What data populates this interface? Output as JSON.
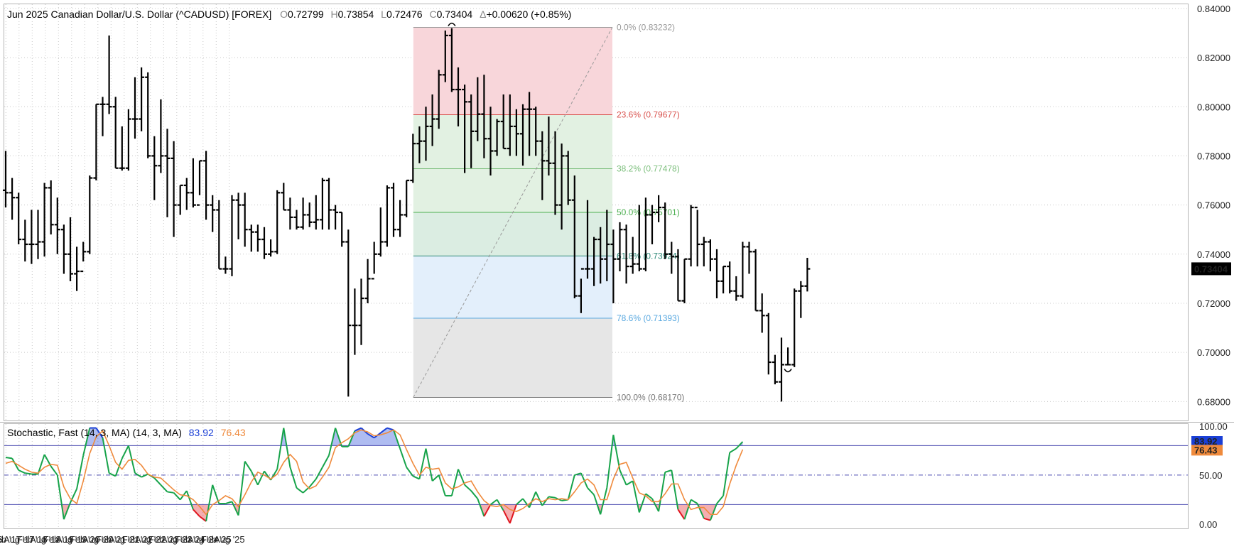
{
  "header": {
    "title": "Jun 2025  Canadian Dollar/U.S. Dollar (^CADUSD) [FOREX]",
    "ohlc": [
      {
        "label": "O",
        "value": "0.72799"
      },
      {
        "label": "H",
        "value": "0.73854"
      },
      {
        "label": "L",
        "value": "0.72476"
      },
      {
        "label": "C",
        "value": "0.73404"
      }
    ],
    "change_label": "Δ",
    "change": "+0.00620 (+0.85%)"
  },
  "indicator": {
    "title": "Stochastic, Fast (14, 3, MA)  (14, 3, MA)",
    "k_value": "83.92",
    "d_value": "76.43",
    "k_color": "#1a3fd6",
    "d_color": "#ef8a3c"
  },
  "colors": {
    "k_line": "#17a34a",
    "d_line": "#ef8a3c",
    "overbought_fill": "#1a3fd6",
    "oversold_fill": "#e0161f",
    "level_line": "#4a4ab0",
    "last_price_bg": "#000000"
  },
  "chart_data": [
    {
      "type": "ohlc",
      "name": "^CADUSD",
      "period": "quarterly",
      "x_ticks": [
        "g '16",
        "Feb '17",
        "Aug '17",
        "Feb '18",
        "Aug '18",
        "Feb '19",
        "Aug '19",
        "Feb '20",
        "Aug '20",
        "Feb '21",
        "Aug '21",
        "Feb '22",
        "Aug '22",
        "Feb '23",
        "Aug '23",
        "Feb '24",
        "Aug '24",
        "Feb '25",
        "Aug '25"
      ],
      "y_ticks": [
        "0.84000",
        "0.82000",
        "0.80000",
        "0.78000",
        "0.76000",
        "0.74000",
        "0.72000",
        "0.70000",
        "0.68000"
      ],
      "ylim": [
        0.672,
        0.842
      ],
      "last_price": "0.73404",
      "bars": [
        [
          0.766,
          0.782,
          0.759,
          0.765
        ],
        [
          0.765,
          0.771,
          0.754,
          0.763
        ],
        [
          0.763,
          0.765,
          0.744,
          0.746
        ],
        [
          0.746,
          0.754,
          0.737,
          0.744
        ],
        [
          0.744,
          0.758,
          0.736,
          0.744
        ],
        [
          0.744,
          0.758,
          0.738,
          0.745
        ],
        [
          0.745,
          0.769,
          0.739,
          0.767
        ],
        [
          0.767,
          0.77,
          0.748,
          0.752
        ],
        [
          0.752,
          0.763,
          0.74,
          0.75
        ],
        [
          0.75,
          0.752,
          0.732,
          0.74
        ],
        [
          0.74,
          0.755,
          0.729,
          0.732
        ],
        [
          0.732,
          0.743,
          0.725,
          0.733
        ],
        [
          0.733,
          0.745,
          0.737,
          0.741
        ],
        [
          0.741,
          0.772,
          0.74,
          0.771
        ],
        [
          0.771,
          0.801,
          0.77,
          0.801
        ],
        [
          0.801,
          0.804,
          0.788,
          0.801
        ],
        [
          0.801,
          0.829,
          0.797,
          0.8
        ],
        [
          0.8,
          0.804,
          0.775,
          0.775
        ],
        [
          0.775,
          0.792,
          0.774,
          0.775
        ],
        [
          0.775,
          0.799,
          0.774,
          0.795
        ],
        [
          0.795,
          0.812,
          0.787,
          0.795
        ],
        [
          0.795,
          0.816,
          0.79,
          0.812
        ],
        [
          0.812,
          0.814,
          0.779,
          0.78
        ],
        [
          0.78,
          0.788,
          0.762,
          0.776
        ],
        [
          0.776,
          0.803,
          0.773,
          0.78
        ],
        [
          0.78,
          0.791,
          0.755,
          0.779
        ],
        [
          0.779,
          0.786,
          0.747,
          0.76
        ],
        [
          0.76,
          0.768,
          0.756,
          0.768
        ],
        [
          0.768,
          0.771,
          0.758,
          0.765
        ],
        [
          0.765,
          0.779,
          0.759,
          0.76
        ],
        [
          0.76,
          0.778,
          0.764,
          0.778
        ],
        [
          0.778,
          0.782,
          0.754,
          0.76
        ],
        [
          0.76,
          0.764,
          0.749,
          0.758
        ],
        [
          0.758,
          0.762,
          0.734,
          0.734
        ],
        [
          0.734,
          0.739,
          0.732,
          0.734
        ],
        [
          0.734,
          0.764,
          0.731,
          0.762
        ],
        [
          0.762,
          0.765,
          0.746,
          0.76
        ],
        [
          0.76,
          0.765,
          0.743,
          0.75
        ],
        [
          0.75,
          0.752,
          0.741,
          0.749
        ],
        [
          0.749,
          0.752,
          0.741,
          0.746
        ],
        [
          0.746,
          0.751,
          0.738,
          0.74
        ],
        [
          0.74,
          0.746,
          0.739,
          0.741
        ],
        [
          0.741,
          0.766,
          0.74,
          0.765
        ],
        [
          0.765,
          0.769,
          0.758,
          0.758
        ],
        [
          0.758,
          0.763,
          0.75,
          0.755
        ],
        [
          0.755,
          0.758,
          0.75,
          0.751
        ],
        [
          0.751,
          0.763,
          0.75,
          0.756
        ],
        [
          0.756,
          0.761,
          0.751,
          0.753
        ],
        [
          0.753,
          0.764,
          0.75,
          0.754
        ],
        [
          0.754,
          0.771,
          0.75,
          0.77
        ],
        [
          0.77,
          0.771,
          0.75,
          0.758
        ],
        [
          0.758,
          0.76,
          0.75,
          0.757
        ],
        [
          0.757,
          0.757,
          0.743,
          0.745
        ],
        [
          0.745,
          0.75,
          0.682,
          0.711
        ],
        [
          0.711,
          0.726,
          0.699,
          0.711
        ],
        [
          0.711,
          0.73,
          0.703,
          0.722
        ],
        [
          0.722,
          0.738,
          0.72,
          0.73
        ],
        [
          0.73,
          0.745,
          0.732,
          0.74
        ],
        [
          0.74,
          0.759,
          0.739,
          0.745
        ],
        [
          0.745,
          0.768,
          0.743,
          0.767
        ],
        [
          0.767,
          0.769,
          0.747,
          0.75
        ],
        [
          0.75,
          0.762,
          0.747,
          0.756
        ],
        [
          0.756,
          0.77,
          0.755,
          0.77
        ],
        [
          0.77,
          0.789,
          0.769,
          0.785
        ],
        [
          0.785,
          0.792,
          0.777,
          0.786
        ],
        [
          0.786,
          0.8,
          0.778,
          0.792
        ],
        [
          0.792,
          0.805,
          0.784,
          0.795
        ],
        [
          0.795,
          0.815,
          0.791,
          0.813
        ],
        [
          0.813,
          0.831,
          0.81,
          0.829
        ],
        [
          0.829,
          0.832,
          0.806,
          0.807
        ],
        [
          0.807,
          0.816,
          0.792,
          0.807
        ],
        [
          0.807,
          0.809,
          0.773,
          0.802
        ],
        [
          0.802,
          0.805,
          0.775,
          0.79
        ],
        [
          0.79,
          0.812,
          0.786,
          0.797
        ],
        [
          0.797,
          0.813,
          0.779,
          0.787
        ],
        [
          0.787,
          0.8,
          0.772,
          0.782
        ],
        [
          0.782,
          0.795,
          0.78,
          0.794
        ],
        [
          0.794,
          0.805,
          0.783,
          0.783
        ],
        [
          0.783,
          0.805,
          0.78,
          0.792
        ],
        [
          0.792,
          0.799,
          0.78,
          0.789
        ],
        [
          0.789,
          0.801,
          0.776,
          0.799
        ],
        [
          0.799,
          0.806,
          0.78,
          0.799
        ],
        [
          0.799,
          0.8,
          0.78,
          0.786
        ],
        [
          0.786,
          0.79,
          0.762,
          0.778
        ],
        [
          0.778,
          0.796,
          0.772,
          0.777
        ],
        [
          0.777,
          0.79,
          0.756,
          0.76
        ],
        [
          0.76,
          0.785,
          0.75,
          0.78
        ],
        [
          0.78,
          0.782,
          0.76,
          0.762
        ],
        [
          0.762,
          0.772,
          0.722,
          0.723
        ],
        [
          0.723,
          0.73,
          0.716,
          0.734
        ],
        [
          0.734,
          0.762,
          0.73,
          0.734
        ],
        [
          0.734,
          0.747,
          0.727,
          0.746
        ],
        [
          0.746,
          0.751,
          0.728,
          0.738
        ],
        [
          0.738,
          0.758,
          0.729,
          0.744
        ],
        [
          0.744,
          0.75,
          0.72,
          0.738
        ],
        [
          0.738,
          0.753,
          0.733,
          0.75
        ],
        [
          0.75,
          0.752,
          0.728,
          0.735
        ],
        [
          0.735,
          0.747,
          0.732,
          0.736
        ],
        [
          0.736,
          0.76,
          0.733,
          0.734
        ],
        [
          0.734,
          0.763,
          0.733,
          0.756
        ],
        [
          0.756,
          0.76,
          0.744,
          0.757
        ],
        [
          0.757,
          0.764,
          0.753,
          0.759
        ],
        [
          0.759,
          0.761,
          0.738,
          0.74
        ],
        [
          0.74,
          0.745,
          0.732,
          0.739
        ],
        [
          0.739,
          0.742,
          0.721,
          0.721
        ],
        [
          0.721,
          0.738,
          0.72,
          0.738
        ],
        [
          0.738,
          0.76,
          0.735,
          0.759
        ],
        [
          0.759,
          0.758,
          0.735,
          0.744
        ],
        [
          0.744,
          0.747,
          0.735,
          0.745
        ],
        [
          0.745,
          0.746,
          0.733,
          0.738
        ],
        [
          0.738,
          0.742,
          0.722,
          0.729
        ],
        [
          0.729,
          0.735,
          0.724,
          0.735
        ],
        [
          0.735,
          0.737,
          0.724,
          0.725
        ],
        [
          0.725,
          0.731,
          0.721,
          0.723
        ],
        [
          0.723,
          0.745,
          0.722,
          0.743
        ],
        [
          0.743,
          0.745,
          0.732,
          0.741
        ],
        [
          0.741,
          0.742,
          0.717,
          0.717
        ],
        [
          0.717,
          0.724,
          0.708,
          0.715
        ],
        [
          0.715,
          0.716,
          0.691,
          0.696
        ],
        [
          0.696,
          0.699,
          0.687,
          0.688
        ],
        [
          0.688,
          0.706,
          0.68,
          0.695
        ],
        [
          0.695,
          0.702,
          0.695,
          0.695
        ],
        [
          0.695,
          0.726,
          0.694,
          0.725
        ],
        [
          0.725,
          0.729,
          0.714,
          0.727
        ],
        [
          0.727,
          0.7385,
          0.7248,
          0.734
        ]
      ],
      "swing_markers": [
        {
          "index": 69,
          "type": "high"
        },
        {
          "index": 121,
          "type": "low"
        }
      ],
      "fibonacci": {
        "high": 0.83232,
        "low": 0.6817,
        "levels": [
          {
            "ratio": "0.0%",
            "price": 0.83232,
            "label": "0.0% (0.83232)",
            "color": "#999999",
            "fill": "#f8d6da"
          },
          {
            "ratio": "23.6%",
            "price": 0.79677,
            "label": "23.6% (0.79677)",
            "color": "#d9534f",
            "fill": "#e2f1e2"
          },
          {
            "ratio": "38.2%",
            "price": 0.77478,
            "label": "38.2% (0.77478)",
            "color": "#7cbf7c",
            "fill": "#e2f1e2"
          },
          {
            "ratio": "50.0%",
            "price": 0.75701,
            "label": "50.0% (0.75701)",
            "color": "#4caf50",
            "fill": "#dbede2"
          },
          {
            "ratio": "61.8%",
            "price": 0.73924,
            "label": "61.8% (0.73924)",
            "color": "#2e8b7a",
            "fill": "#e3effb"
          },
          {
            "ratio": "78.6%",
            "price": 0.71393,
            "label": "78.6% (0.71393)",
            "color": "#5aa9e0",
            "fill": "#e6e6e6"
          },
          {
            "ratio": "100.0%",
            "price": 0.6817,
            "label": "100.0% (0.68170)",
            "color": "#777777",
            "fill": ""
          }
        ]
      }
    },
    {
      "type": "line",
      "name": "Stochastic, Fast (14, 3, MA)",
      "ylim": [
        -5,
        102
      ],
      "y_ticks": [
        "100.00",
        "50.00",
        "0.00"
      ],
      "levels": {
        "overbought": 80,
        "middle": 50,
        "oversold": 20
      },
      "series": [
        {
          "name": "%K",
          "values": [
            68,
            67,
            55,
            52,
            51,
            51,
            71,
            59,
            50,
            5,
            22,
            36,
            70,
            98,
            98,
            88,
            52,
            49,
            67,
            80,
            52,
            48,
            51,
            47,
            40,
            33,
            32,
            25,
            34,
            15,
            8,
            3,
            40,
            21,
            21,
            23,
            9,
            64,
            54,
            40,
            54,
            45,
            56,
            98,
            58,
            37,
            32,
            38,
            46,
            58,
            70,
            98,
            79,
            79,
            95,
            98,
            92,
            88,
            93,
            98,
            96,
            77,
            58,
            49,
            46,
            77,
            44,
            50,
            29,
            29,
            56,
            40,
            34,
            26,
            8,
            20,
            25,
            14,
            1,
            20,
            26,
            17,
            33,
            19,
            28,
            27,
            24,
            25,
            50,
            52,
            37,
            30,
            10,
            37,
            91,
            55,
            40,
            44,
            12,
            31,
            26,
            13,
            53,
            55,
            15,
            5,
            25,
            21,
            6,
            4,
            21,
            29,
            73,
            77,
            84
          ]
        },
        {
          "name": "%D",
          "values": [
            62,
            64,
            60,
            56,
            53,
            52,
            58,
            61,
            60,
            38,
            26,
            21,
            44,
            72,
            89,
            95,
            80,
            63,
            56,
            65,
            66,
            60,
            51,
            48,
            47,
            41,
            35,
            30,
            29,
            25,
            18,
            10,
            20,
            24,
            29,
            26,
            18,
            30,
            43,
            53,
            50,
            46,
            51,
            63,
            71,
            64,
            43,
            36,
            39,
            48,
            58,
            78,
            83,
            87,
            93,
            96,
            94,
            90,
            91,
            93,
            96,
            91,
            76,
            62,
            50,
            58,
            56,
            57,
            42,
            36,
            38,
            42,
            44,
            33,
            24,
            19,
            18,
            20,
            15,
            13,
            16,
            21,
            26,
            23,
            26,
            25,
            26,
            25,
            33,
            42,
            46,
            40,
            25,
            25,
            46,
            61,
            63,
            47,
            32,
            29,
            23,
            23,
            31,
            41,
            41,
            25,
            15,
            17,
            17,
            10,
            10,
            18,
            41,
            60,
            76
          ]
        }
      ]
    }
  ]
}
